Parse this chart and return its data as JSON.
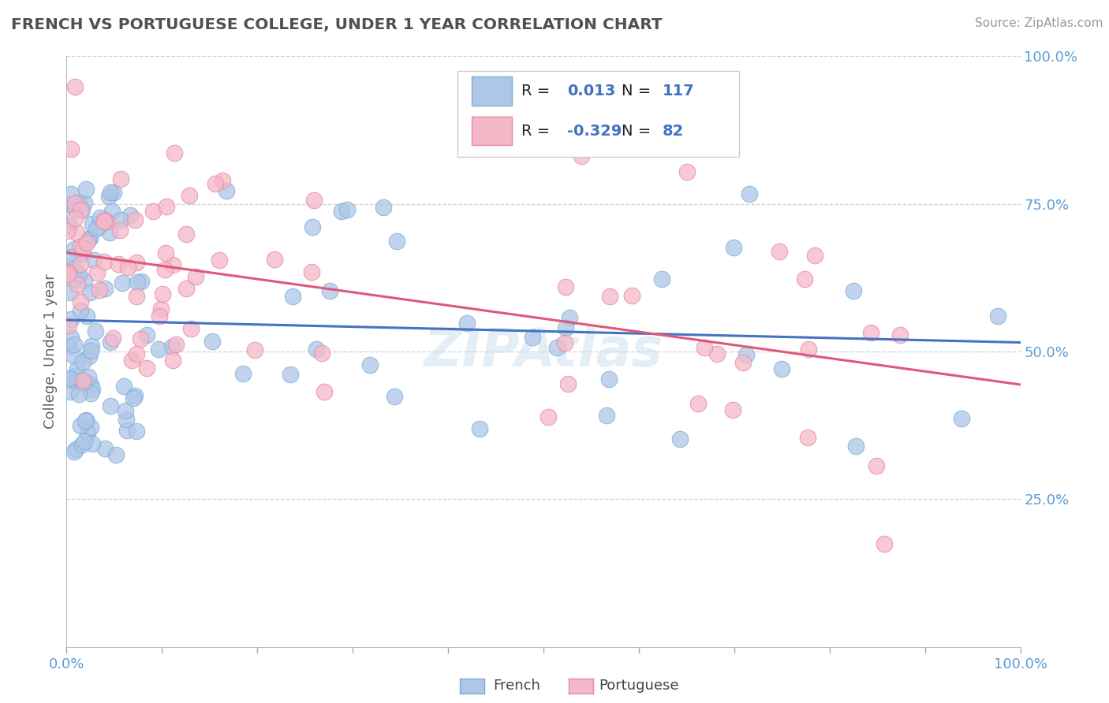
{
  "title": "FRENCH VS PORTUGUESE COLLEGE, UNDER 1 YEAR CORRELATION CHART",
  "source": "Source: ZipAtlas.com",
  "ylabel": "College, Under 1 year",
  "french_color": "#aec6e8",
  "french_edge": "#7bafd4",
  "portuguese_color": "#f4b8c8",
  "portuguese_edge": "#e888a8",
  "french_line_color": "#4472c4",
  "portuguese_line_color": "#e05878",
  "french_R": 0.013,
  "french_N": 117,
  "portuguese_R": -0.329,
  "portuguese_N": 82,
  "watermark": "ZIPAtlas",
  "background_color": "#ffffff",
  "grid_color": "#d0d0d0",
  "title_color": "#505050",
  "tick_label_color": "#5b9bd5",
  "legend_R_color": "#4472c4",
  "legend_N_color": "#4472c4"
}
